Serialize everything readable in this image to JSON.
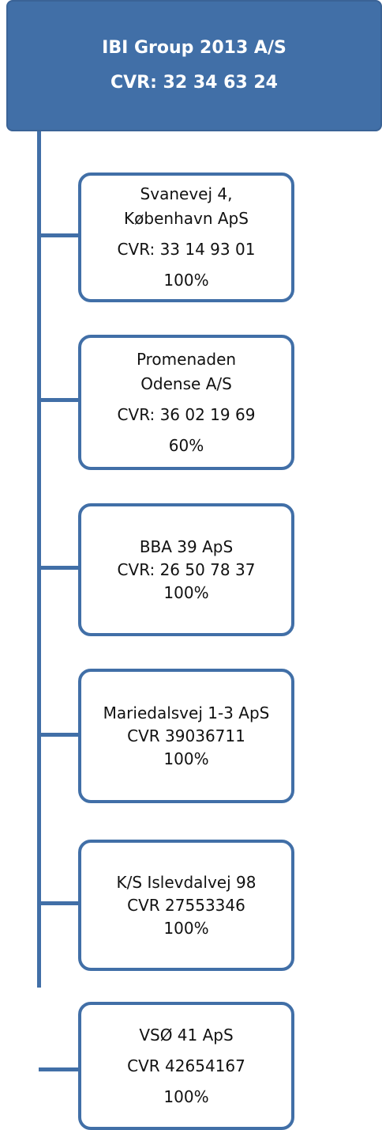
{
  "diagram": {
    "parent": {
      "name": "IBI Group 2013 A/S",
      "cvr": "CVR: 32 34 63 24"
    },
    "subsidiaries": [
      {
        "name_line1": "Svanevej 4,",
        "name_line2": "København ApS",
        "cvr": "CVR: 33 14 93 01",
        "ownership": "100%"
      },
      {
        "name_line1": "Promenaden",
        "name_line2": "Odense A/S",
        "cvr": "CVR: 36 02 19 69",
        "ownership": "60%"
      },
      {
        "name_line1": "BBA 39 ApS",
        "cvr": "CVR: 26 50 78 37",
        "ownership": "100%"
      },
      {
        "name_line1": "Mariedalsvej 1-3 ApS",
        "cvr": "CVR 39036711",
        "ownership": "100%"
      },
      {
        "name_line1": "K/S Islevdalvej 98",
        "cvr": "CVR 27553346",
        "ownership": "100%"
      },
      {
        "name_line1": "VSØ 41 ApS",
        "cvr": "CVR 42654167",
        "ownership": "100%"
      }
    ],
    "colors": {
      "primary": "#416fa7",
      "parent_text": "#ffffff",
      "child_text": "#111111"
    }
  }
}
